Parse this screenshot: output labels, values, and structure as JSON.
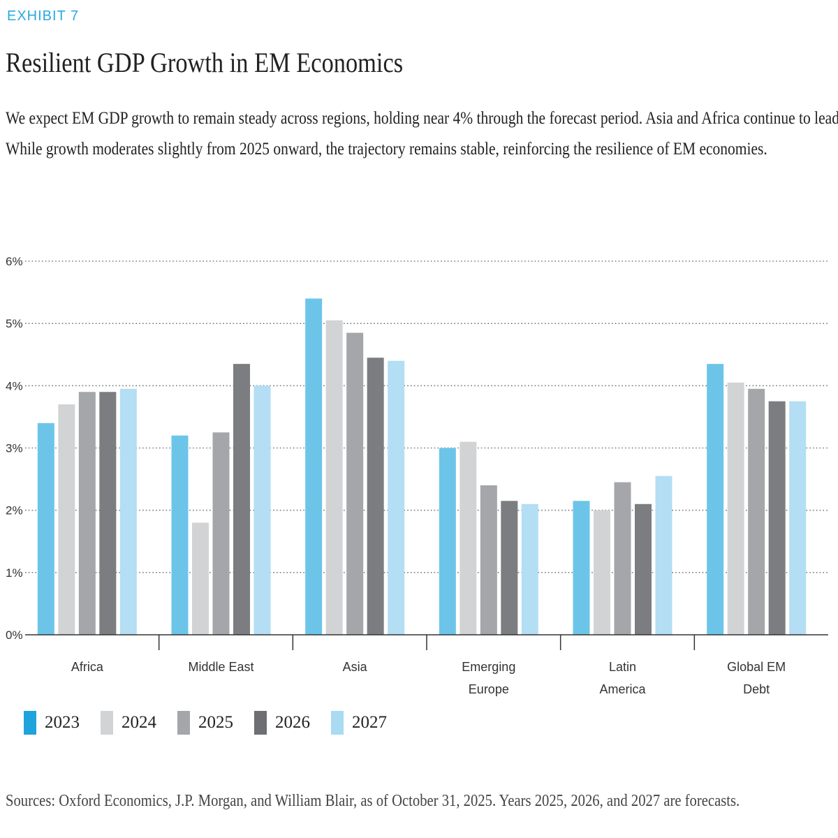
{
  "header": {
    "exhibit": "EXHIBIT 7",
    "title": "Resilient GDP Growth in EM Economics",
    "subtitle_lines": [
      "We expect EM GDP growth to remain steady across regions, holding near 4% through the forecast period. Asia and Africa continue to lead.",
      "While growth moderates slightly from 2025 onward, the trajectory remains stable, reinforcing the resilience of EM economies."
    ]
  },
  "chart_data": {
    "type": "bar",
    "title": "Resilient GDP Growth in EM Economics",
    "xlabel": "",
    "ylabel": "",
    "ylim": [
      0,
      6
    ],
    "yticks": [
      "0%",
      "1%",
      "2%",
      "3%",
      "4%",
      "5%",
      "6%"
    ],
    "grid": true,
    "categories": [
      [
        "Africa"
      ],
      [
        "Middle East"
      ],
      [
        "Asia"
      ],
      [
        "Emerging",
        "Europe"
      ],
      [
        "Latin",
        "America"
      ],
      [
        "Global EM",
        "Debt"
      ]
    ],
    "series": [
      {
        "name": "2023",
        "color": "#6cc5e9",
        "values": [
          3.4,
          3.2,
          5.4,
          3.0,
          2.15,
          4.35
        ]
      },
      {
        "name": "2024",
        "color": "#d2d3d5",
        "values": [
          3.7,
          1.8,
          5.05,
          3.1,
          2.0,
          4.05
        ]
      },
      {
        "name": "2025",
        "color": "#a4a6aa",
        "values": [
          3.9,
          3.25,
          4.85,
          2.4,
          2.45,
          3.95
        ]
      },
      {
        "name": "2026",
        "color": "#7b7d81",
        "values": [
          3.9,
          4.35,
          4.45,
          2.15,
          2.1,
          3.75
        ]
      },
      {
        "name": "2027",
        "color": "#b3def3",
        "values": [
          3.95,
          4.0,
          4.4,
          2.1,
          2.55,
          3.75
        ]
      }
    ],
    "legend": {
      "position": "bottom-left",
      "items": [
        {
          "label": "2023",
          "color": "#1fa3dc"
        },
        {
          "label": "2024",
          "color": "#d2d3d5"
        },
        {
          "label": "2025",
          "color": "#a4a6aa"
        },
        {
          "label": "2026",
          "color": "#6d6f73"
        },
        {
          "label": "2027",
          "color": "#a9dbf2"
        }
      ]
    }
  },
  "footer": {
    "source": "Sources: Oxford Economics, J.P. Morgan, and William Blair, as of October 31, 2025. Years 2025, 2026, and 2027 are forecasts."
  }
}
